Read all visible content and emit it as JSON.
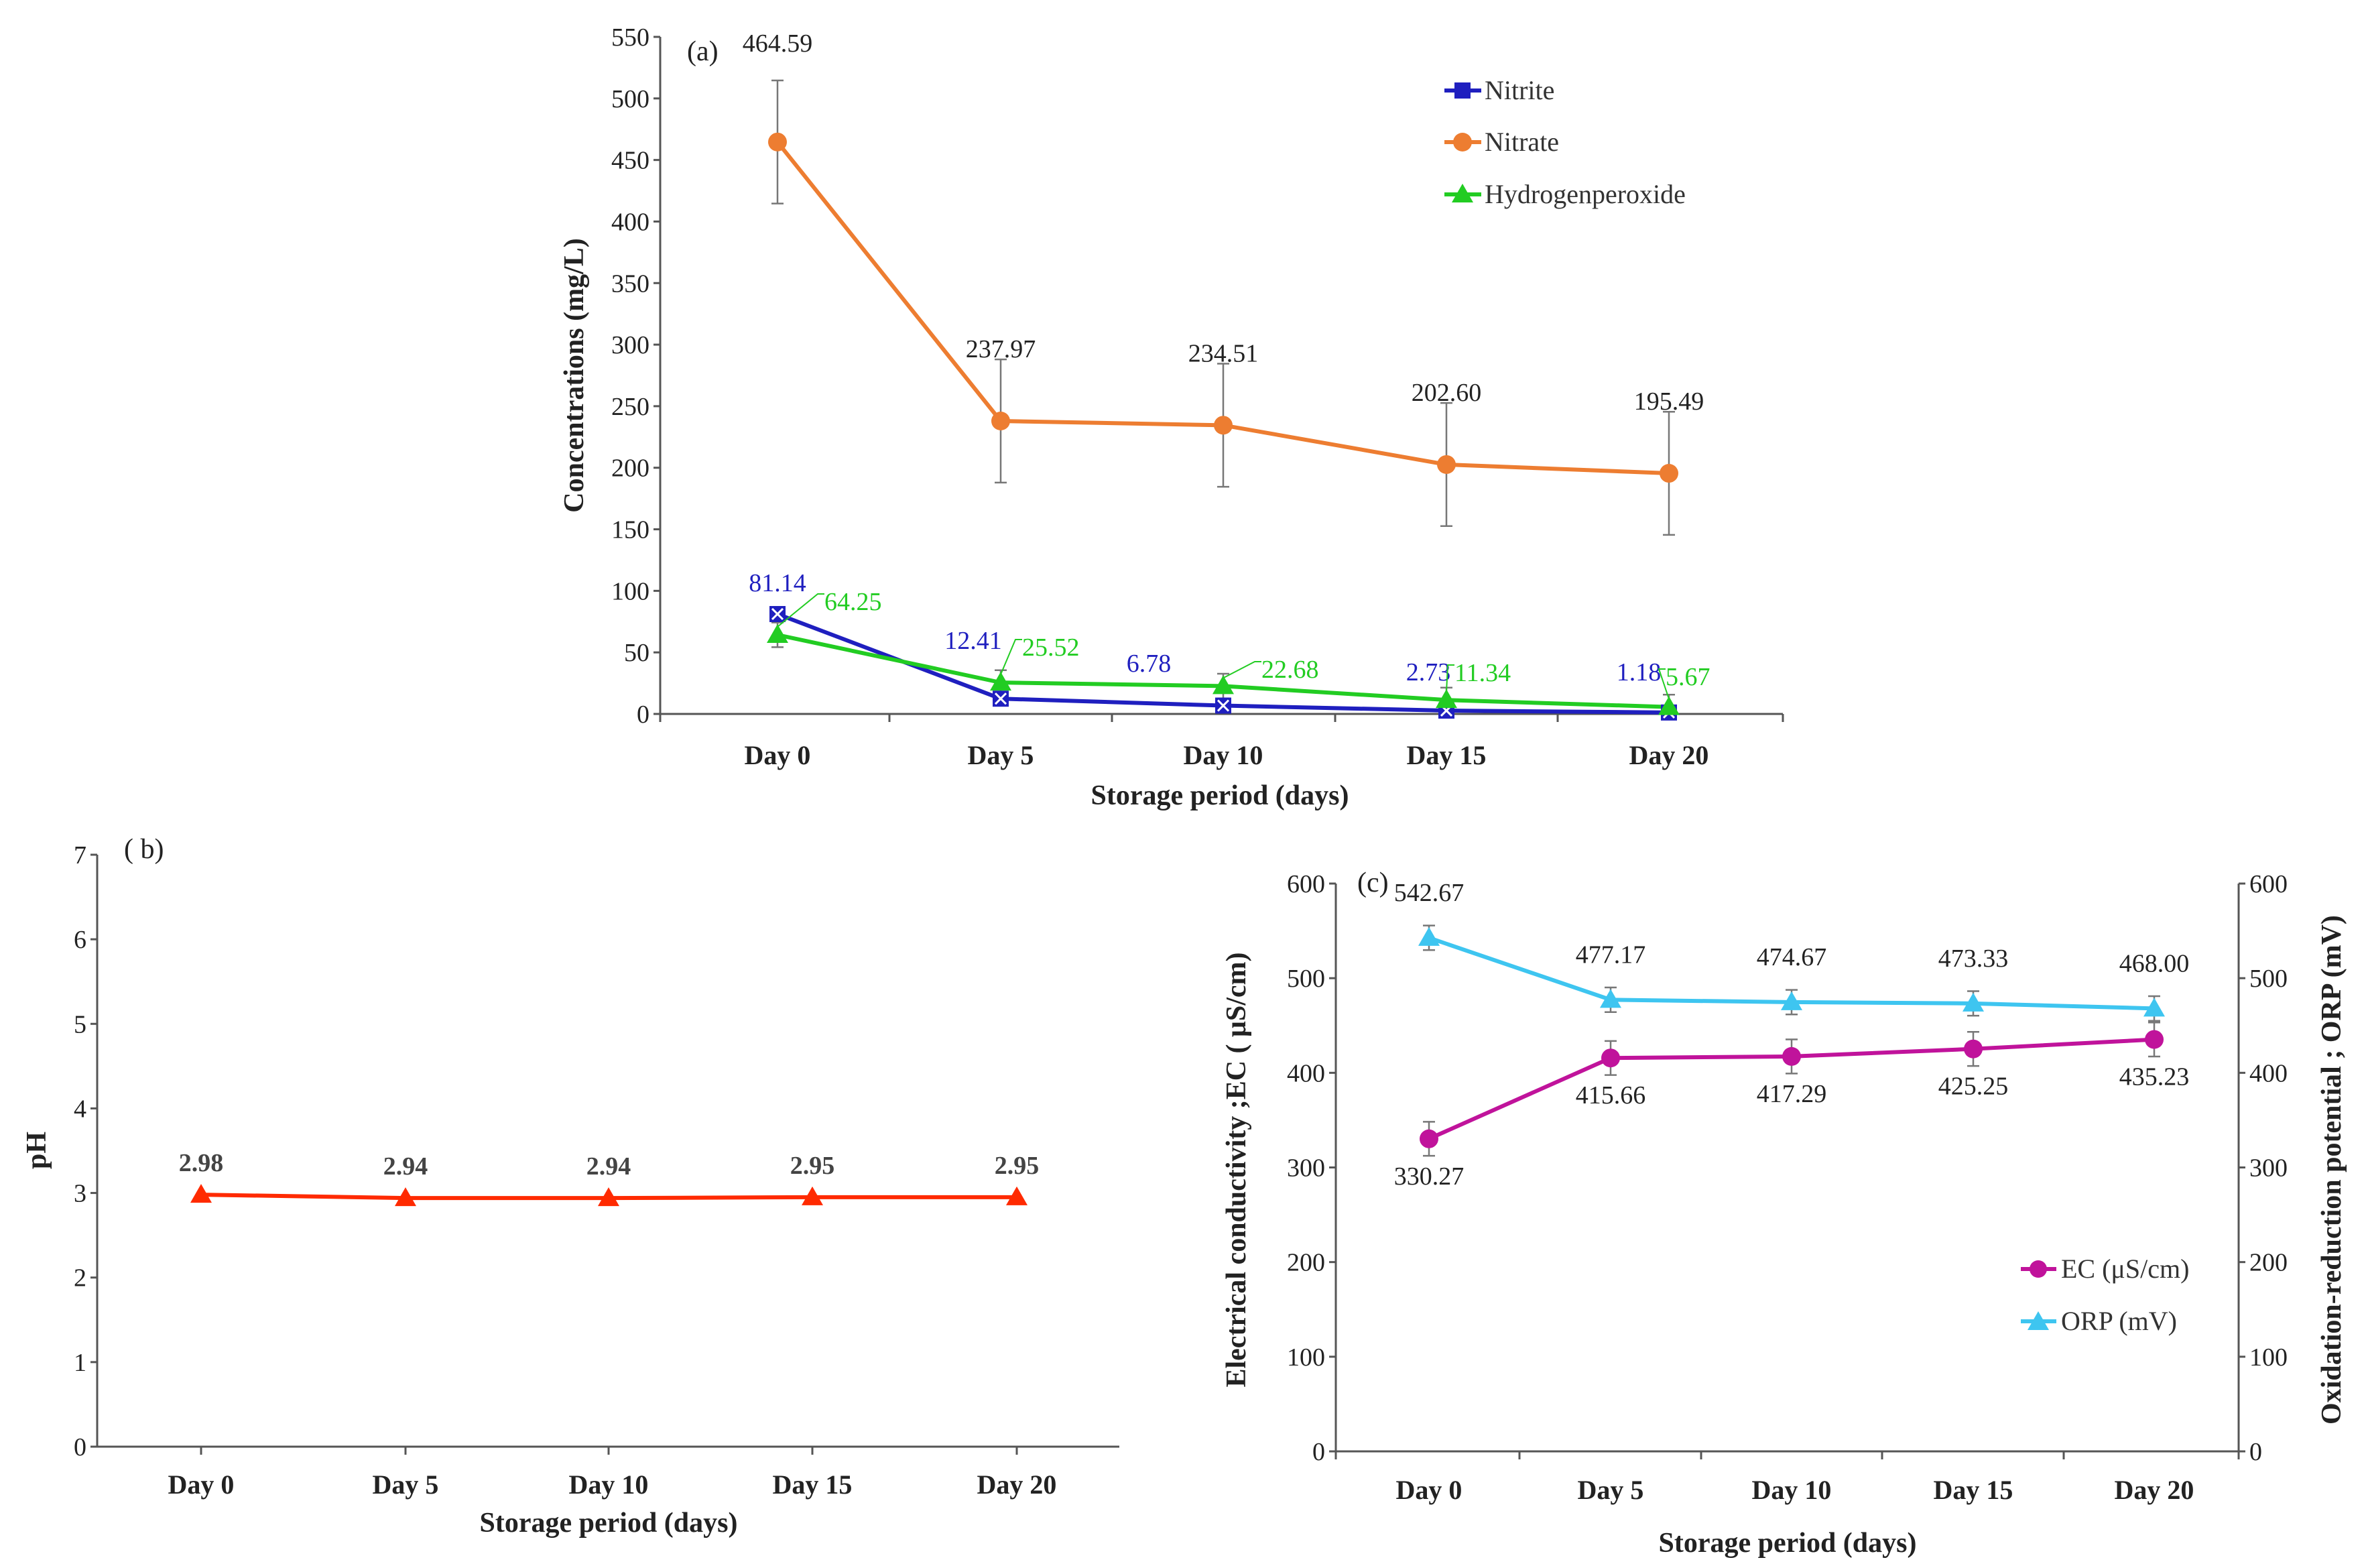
{
  "chart_data": [
    {
      "type": "line",
      "panel_label": "(a)",
      "title": "",
      "xlabel": "Storage period (days)",
      "ylabel": "Concentrations (mg/L)",
      "ylim": [
        0,
        550
      ],
      "yticks": [
        "0",
        "50",
        "100",
        "150",
        "200",
        "250",
        "300",
        "350",
        "400",
        "450",
        "500",
        "550"
      ],
      "categories": [
        "Day 0",
        "Day 5",
        "Day 10",
        "Day 15",
        "Day 20"
      ],
      "legend_position": "top-right",
      "series": [
        {
          "name": "Nitrite",
          "color": "#1f1fbf",
          "marker": "square-x",
          "values": [
            81.14,
            12.41,
            6.78,
            2.73,
            1.18
          ],
          "labels": [
            "81.14",
            "12.41",
            "6.78",
            "2.73",
            "1.18"
          ],
          "error": 5
        },
        {
          "name": "Nitrate",
          "color": "#ed7d31",
          "marker": "circle",
          "values": [
            464.59,
            237.97,
            234.51,
            202.6,
            195.49
          ],
          "labels": [
            "464.59",
            "237.97",
            "234.51",
            "202.60",
            "195.49"
          ],
          "error": 50
        },
        {
          "name": "Hydrogenperoxide",
          "color": "#22cc22",
          "marker": "triangle",
          "values": [
            64.25,
            25.52,
            22.68,
            11.34,
            5.67
          ],
          "labels": [
            "64.25",
            "25.52",
            "22.68",
            "11.34",
            "5.67"
          ],
          "error": 10
        }
      ]
    },
    {
      "type": "line",
      "panel_label": "( b)",
      "title": "",
      "xlabel": "Storage period  (days)",
      "ylabel": "pH",
      "ylim": [
        0,
        7
      ],
      "yticks": [
        "0",
        "1",
        "2",
        "3",
        "4",
        "5",
        "6",
        "7"
      ],
      "categories": [
        "Day 0",
        "Day 5",
        "Day 10",
        "Day 15",
        "Day 20"
      ],
      "series": [
        {
          "name": "pH",
          "color": "#ff2a00",
          "marker": "triangle",
          "values": [
            2.98,
            2.94,
            2.94,
            2.95,
            2.95
          ],
          "labels": [
            "2.98",
            "2.94",
            "2.94",
            "2.95",
            "2.95"
          ]
        }
      ]
    },
    {
      "type": "line",
      "panel_label": "(c)",
      "title": "",
      "xlabel": "Storage period (days)",
      "ylabel": "Electrical conductivity ;EC ( μS/cm)",
      "ylabel_right": "Oxidation-reduction potential ; ORP (mV)",
      "ylim": [
        0,
        600
      ],
      "ylim_right": [
        0,
        600
      ],
      "yticks": [
        "0",
        "100",
        "200",
        "300",
        "400",
        "500",
        "600"
      ],
      "yticks_right": [
        "0",
        "100",
        "200",
        "300",
        "400",
        "500",
        "600"
      ],
      "categories": [
        "Day 0",
        "Day 5",
        "Day 10",
        "Day 15",
        "Day 20"
      ],
      "legend_position": "bottom-right",
      "series": [
        {
          "name": "EC  (μS/cm)",
          "color": "#c0139b",
          "marker": "circle",
          "values": [
            330.27,
            415.66,
            417.29,
            425.25,
            435.23
          ],
          "labels": [
            "330.27",
            "415.66",
            "417.29",
            "425.25",
            "435.23"
          ],
          "error": 18
        },
        {
          "name": "ORP (mV)",
          "color": "#3ec5f0",
          "marker": "triangle",
          "values": [
            542.67,
            477.17,
            474.67,
            473.33,
            468.0
          ],
          "labels": [
            "542.67",
            "477.17",
            "474.67",
            "473.33",
            "468.00"
          ],
          "error": 13
        }
      ]
    }
  ]
}
